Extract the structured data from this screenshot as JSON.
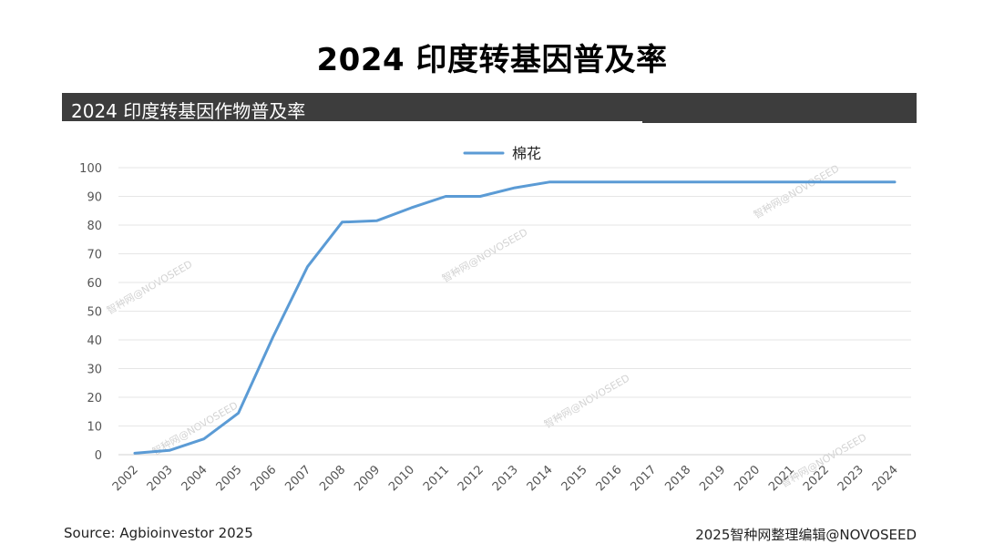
{
  "header": {
    "title": "2024 印度转基因普及率"
  },
  "subtitle": {
    "text": "2024 印度转基因作物普及率"
  },
  "footer": {
    "source": "Source: Agbioinvestor 2025",
    "credit": "2025智种网整理编辑@NOVOSEED"
  },
  "watermark": {
    "text": "智种网@NOVOSEED"
  },
  "chart_data": {
    "type": "line",
    "title": "",
    "xlabel": "",
    "ylabel": "",
    "ylim": [
      0,
      100
    ],
    "yticks": [
      0,
      10,
      20,
      30,
      40,
      50,
      60,
      70,
      80,
      90,
      100
    ],
    "grid": true,
    "legend_position": "top-center",
    "categories": [
      "2002",
      "2003",
      "2004",
      "2005",
      "2006",
      "2007",
      "2008",
      "2009",
      "2010",
      "2011",
      "2012",
      "2013",
      "2014",
      "2015",
      "2016",
      "2017",
      "2018",
      "2019",
      "2020",
      "2021",
      "2022",
      "2023",
      "2024"
    ],
    "series": [
      {
        "name": "棉花",
        "color": "#5b9bd5",
        "values": [
          0.5,
          1.5,
          5.5,
          14.5,
          41,
          65.5,
          81,
          81.5,
          86,
          90,
          90,
          93,
          95,
          95,
          95,
          95,
          95,
          95,
          95,
          95,
          95,
          95,
          95
        ]
      }
    ]
  }
}
